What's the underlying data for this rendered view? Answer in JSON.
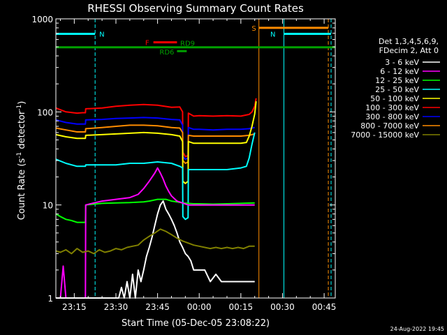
{
  "chart_data": {
    "type": "line",
    "title": "RHESSI Observing Summary Count Rates",
    "xlabel": "Start Time (05-Dec-05 23:08:22)",
    "ylabel": "Count Rate (s",
    "ylabel_sup1": "-1",
    "ylabel_mid": " detector",
    "ylabel_sup2": "-1",
    "ylabel_end": ")",
    "footer": "24-Aug-2022 19:45",
    "x_ticks": [
      "23:15",
      "23:30",
      "23:45",
      "00:00",
      "00:15",
      "00:30",
      "00:45"
    ],
    "x_tick_minutes": [
      15,
      30,
      45,
      60,
      75,
      90,
      105
    ],
    "xlim_minutes": [
      8.37,
      109.0
    ],
    "y_scale": "log",
    "ylim": [
      1,
      1000
    ],
    "y_ticks": [
      "1",
      "10",
      "100",
      "1000"
    ],
    "y_tick_values": [
      1,
      10,
      100,
      1000
    ],
    "legend": {
      "header": [
        "Det 1,3,4,5,6,9,",
        "FDecim 2, Att 0"
      ],
      "entries": [
        {
          "label": "3 - 6 keV",
          "color": "#ffffff"
        },
        {
          "label": "6 - 12 keV",
          "color": "#ff00ff"
        },
        {
          "label": "12 - 25 keV",
          "color": "#00ff00"
        },
        {
          "label": "25 - 50 keV",
          "color": "#00ffff"
        },
        {
          "label": "50 - 100 keV",
          "color": "#ffff00"
        },
        {
          "label": "100 - 300 keV",
          "color": "#ff0000"
        },
        {
          "label": "300 - 800 keV",
          "color": "#0000ff"
        },
        {
          "label": "800 - 7000 keV",
          "color": "#ff8c00"
        },
        {
          "label": "7000 - 15000 keV",
          "color": "#808000"
        }
      ]
    },
    "flags": [
      {
        "label": "N",
        "color": "#00ffff",
        "x_start": 8.37,
        "x_end": 22.5,
        "y_value": 690
      },
      {
        "label": "N",
        "color": "#00ffff",
        "x_start": 90.5,
        "x_end": 107.5,
        "y_value": 690
      },
      {
        "label": "S",
        "color": "#ff8c00",
        "x_start": 81.5,
        "x_end": 106.5,
        "y_value": 800
      },
      {
        "label": "F",
        "color": "#ff0000",
        "x_start": 43.5,
        "x_end": 52.0,
        "y_value": 560
      },
      {
        "label": "RD9",
        "color": "#00a000",
        "x_start": 8.37,
        "x_end": 109.0,
        "y_value": 495
      },
      {
        "label": "RD6",
        "color": "#00a000",
        "x_start": 52.0,
        "x_end": 55.5,
        "y_value": 450
      }
    ],
    "vertical_markers": [
      {
        "color": "#00ffff",
        "x": 8.37,
        "style": "solid"
      },
      {
        "color": "#00ffff",
        "x": 22.5,
        "style": "dashed"
      },
      {
        "color": "#00ffff",
        "x": 90.5,
        "style": "solid"
      },
      {
        "color": "#00ffff",
        "x": 107.5,
        "style": "dashed"
      },
      {
        "color": "#ff8c00",
        "x": 81.5,
        "style": "solid"
      },
      {
        "color": "#ff8c00",
        "x": 106.5,
        "style": "dashed"
      }
    ],
    "series": [
      {
        "name": "100 - 300 keV",
        "color": "#ff0000",
        "x": [
          8.4,
          12,
          16,
          18,
          19,
          19.1,
          25,
          30,
          35,
          40,
          45,
          50,
          53,
          54,
          54.1,
          55,
          56,
          56.1,
          58,
          60,
          65,
          70,
          75,
          78,
          79,
          80,
          80.5
        ],
        "y": [
          110,
          100,
          97,
          98,
          98,
          108,
          110,
          115,
          118,
          120,
          118,
          112,
          113,
          100,
          37,
          33,
          34,
          97,
          90,
          91,
          90,
          91,
          90,
          94,
          100,
          115,
          140
        ]
      },
      {
        "name": "300 - 800 keV",
        "color": "#0000ff",
        "x": [
          8.4,
          12,
          16,
          18,
          19,
          19.1,
          25,
          30,
          35,
          40,
          45,
          50,
          53,
          54,
          54.1,
          55,
          56,
          56.1,
          58,
          60,
          65,
          70,
          75,
          78,
          79,
          80
        ],
        "y": [
          82,
          77,
          74,
          74,
          74,
          82,
          83,
          85,
          86,
          87,
          86,
          83,
          82,
          72,
          33,
          31,
          32,
          68,
          65,
          65,
          64,
          65,
          65,
          66,
          67,
          68
        ]
      },
      {
        "name": "800 - 7000 keV",
        "color": "#ff8c00",
        "x": [
          8.4,
          12,
          16,
          18,
          19,
          19.1,
          25,
          30,
          35,
          40,
          45,
          50,
          53,
          54,
          54.1,
          55,
          56,
          56.1,
          58,
          60,
          65,
          70,
          75,
          78,
          79,
          80
        ],
        "y": [
          67,
          64,
          61,
          61,
          61,
          66,
          68,
          70,
          72,
          72,
          71,
          68,
          67,
          60,
          30,
          28,
          29,
          56,
          55,
          55,
          55,
          55,
          55,
          56,
          57,
          58
        ]
      },
      {
        "name": "50 - 100 keV",
        "color": "#ffff00",
        "x": [
          8.4,
          12,
          16,
          18,
          19,
          19.1,
          25,
          30,
          35,
          40,
          45,
          50,
          53,
          54,
          54.1,
          55,
          56,
          56.1,
          58,
          60,
          65,
          70,
          75,
          77,
          78,
          79,
          80,
          80.5
        ],
        "y": [
          57,
          54,
          52,
          52,
          52,
          56,
          57,
          58,
          59,
          60,
          59,
          57,
          55,
          48,
          18,
          17,
          18,
          48,
          46,
          46,
          46,
          46,
          46,
          47,
          55,
          70,
          95,
          130
        ]
      },
      {
        "name": "25 - 50 keV",
        "color": "#00ffff",
        "x": [
          8.4,
          12,
          16,
          18,
          19,
          19.1,
          25,
          30,
          35,
          40,
          45,
          50,
          53,
          54,
          54.1,
          55,
          56,
          56.1,
          58,
          60,
          65,
          70,
          75,
          77,
          78,
          79,
          80
        ],
        "y": [
          31,
          28,
          26,
          26,
          26,
          27,
          27,
          27,
          28,
          28,
          29,
          28,
          26,
          25,
          7.5,
          7,
          7.3,
          24,
          24,
          24,
          24,
          24,
          25,
          26,
          32,
          45,
          60
        ]
      },
      {
        "name": "12 - 25 keV",
        "color": "#00ff00",
        "x": [
          8.4,
          10,
          12,
          14,
          16,
          18,
          19,
          19.1,
          22,
          25,
          30,
          35,
          40,
          42,
          45,
          48,
          50,
          52,
          54,
          56,
          58,
          60,
          65,
          70,
          75,
          80
        ],
        "y": [
          8,
          7.5,
          7,
          6.8,
          6.5,
          6.5,
          6.5,
          10,
          10.2,
          10.4,
          10.5,
          10.6,
          10.8,
          11,
          11.5,
          11.5,
          11,
          10.8,
          10.5,
          10.4,
          10.3,
          10.3,
          10.2,
          10.3,
          10.4,
          10.5
        ]
      },
      {
        "name": "6 - 12 keV",
        "color": "#ff00ff",
        "x": [
          8.4,
          10,
          11,
          12,
          14,
          16,
          18,
          19,
          19.1,
          22,
          25,
          30,
          35,
          38,
          40,
          42,
          44,
          45,
          46,
          47,
          48,
          49,
          50,
          52,
          54,
          56,
          58,
          60,
          65,
          70,
          75,
          80
        ],
        "y": [
          1,
          1,
          2.2,
          1,
          1,
          1,
          1,
          1,
          10,
          10.5,
          11,
          11.5,
          12,
          13,
          15,
          18,
          22,
          25,
          22,
          19,
          16,
          14,
          12.5,
          11,
          10.5,
          10,
          10,
          10,
          10,
          10,
          10,
          10
        ]
      },
      {
        "name": "3 - 6 keV",
        "color": "#ffffff",
        "x": [
          8.4,
          30,
          31,
          32,
          33,
          34,
          35,
          36,
          37,
          38,
          39,
          40,
          41,
          42,
          43,
          44,
          45,
          46,
          47,
          48,
          49,
          50,
          51,
          52,
          53,
          54,
          55,
          56,
          57,
          58,
          60,
          62,
          64,
          66,
          68,
          70,
          72,
          74,
          76,
          78,
          80
        ],
        "y": [
          1,
          1,
          1,
          1.3,
          1,
          1.5,
          1,
          1.8,
          1,
          2,
          1.5,
          2,
          2.8,
          3.5,
          4.5,
          6,
          8,
          10,
          11,
          9,
          8,
          7,
          6,
          5,
          4,
          3.5,
          3,
          2.8,
          2.5,
          2,
          2,
          2,
          1.5,
          1.8,
          1.5,
          1.5,
          1.5,
          1.5,
          1.5,
          1.5,
          1.5
        ]
      },
      {
        "name": "7000 - 15000 keV",
        "color": "#808000",
        "x": [
          8.4,
          10,
          12,
          14,
          16,
          18,
          20,
          22,
          24,
          26,
          28,
          30,
          32,
          34,
          36,
          38,
          40,
          42,
          44,
          46,
          48,
          50,
          52,
          54,
          56,
          58,
          60,
          62,
          64,
          66,
          68,
          70,
          72,
          74,
          76,
          78,
          80
        ],
        "y": [
          3.2,
          3.1,
          3.3,
          3.0,
          3.4,
          3.1,
          3.2,
          3.0,
          3.3,
          3.1,
          3.2,
          3.4,
          3.3,
          3.5,
          3.6,
          3.7,
          4.2,
          4.6,
          5.0,
          5.5,
          5.2,
          4.8,
          4.4,
          4.1,
          3.9,
          3.7,
          3.6,
          3.5,
          3.4,
          3.5,
          3.4,
          3.5,
          3.4,
          3.5,
          3.4,
          3.6,
          3.6
        ]
      }
    ]
  }
}
